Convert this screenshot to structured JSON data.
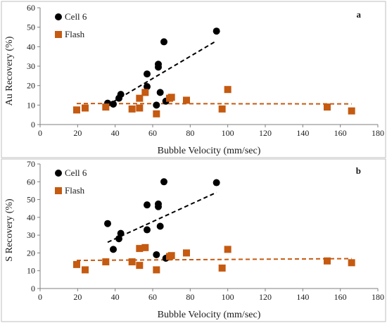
{
  "colors": {
    "cell": "#000000",
    "flash": "#C55A11",
    "axis": "#7f7f7f",
    "frame": "#bfbfbf"
  },
  "chart_data": [
    {
      "type": "scatter",
      "panel_label": "a",
      "xlabel": "Bubble Velocity (mm/sec)",
      "ylabel": "Au Recovery (%)",
      "xlim": [
        0,
        180
      ],
      "ylim": [
        0,
        60
      ],
      "xticks": [
        "0",
        "20",
        "40",
        "60",
        "80",
        "100",
        "120",
        "140",
        "160",
        "180"
      ],
      "yticks": [
        "0",
        "10",
        "20",
        "30",
        "40",
        "50",
        "60"
      ],
      "legend_position": "top-left",
      "grid": false,
      "series": [
        {
          "name": "Cell 6",
          "marker": "circle",
          "points": [
            [
              36,
              11
            ],
            [
              39,
              10.5
            ],
            [
              42,
              13.5
            ],
            [
              43,
              15.5
            ],
            [
              57,
              19.5
            ],
            [
              57,
              26
            ],
            [
              62,
              10
            ],
            [
              63,
              29.5
            ],
            [
              63,
              31
            ],
            [
              64,
              16.5
            ],
            [
              66,
              42.5
            ],
            [
              67,
              12
            ],
            [
              94,
              48
            ]
          ],
          "trendline": [
            [
              36,
              10
            ],
            [
              94,
              43
            ]
          ]
        },
        {
          "name": "Flash",
          "marker": "square",
          "points": [
            [
              19.5,
              7.5
            ],
            [
              24,
              8.5
            ],
            [
              35,
              9
            ],
            [
              49,
              8
            ],
            [
              53,
              13.5
            ],
            [
              53,
              8.5
            ],
            [
              56,
              16.5
            ],
            [
              62,
              5.5
            ],
            [
              69,
              13.5
            ],
            [
              70,
              14
            ],
            [
              78,
              12.5
            ],
            [
              97,
              8
            ],
            [
              100,
              18
            ],
            [
              153,
              9
            ],
            [
              166,
              7
            ]
          ],
          "trendline": [
            [
              19.5,
              10.8
            ],
            [
              166,
              10.6
            ]
          ]
        }
      ]
    },
    {
      "type": "scatter",
      "panel_label": "b",
      "xlabel": "Bubble Velocity (mm/sec)",
      "ylabel": "S Recovery (%)",
      "xlim": [
        0,
        180
      ],
      "ylim": [
        0,
        70
      ],
      "xticks": [
        "0",
        "20",
        "40",
        "60",
        "80",
        "100",
        "120",
        "140",
        "160",
        "180"
      ],
      "yticks": [
        "0",
        "10",
        "20",
        "30",
        "40",
        "50",
        "60",
        "70"
      ],
      "legend_position": "top-left",
      "grid": false,
      "series": [
        {
          "name": "Cell 6",
          "marker": "circle",
          "points": [
            [
              36,
              36.5
            ],
            [
              39,
              22
            ],
            [
              42,
              28
            ],
            [
              43,
              31
            ],
            [
              57,
              33
            ],
            [
              57,
              47
            ],
            [
              62,
              19
            ],
            [
              63,
              46
            ],
            [
              63,
              47.5
            ],
            [
              64,
              35
            ],
            [
              66,
              60
            ],
            [
              67,
              17
            ],
            [
              94,
              59.5
            ]
          ],
          "trendline": [
            [
              36,
              26
            ],
            [
              94,
              54
            ]
          ]
        },
        {
          "name": "Flash",
          "marker": "square",
          "points": [
            [
              19.5,
              13.5
            ],
            [
              24,
              10.5
            ],
            [
              35,
              15
            ],
            [
              49,
              15
            ],
            [
              53,
              22.5
            ],
            [
              53,
              13
            ],
            [
              56,
              23
            ],
            [
              62,
              10.5
            ],
            [
              69,
              18
            ],
            [
              70,
              18.5
            ],
            [
              78,
              20
            ],
            [
              97,
              11.5
            ],
            [
              100,
              22
            ],
            [
              153,
              15.5
            ],
            [
              166,
              14.5
            ]
          ],
          "trendline": [
            [
              19.5,
              15.8
            ],
            [
              166,
              16.8
            ]
          ]
        }
      ]
    }
  ]
}
